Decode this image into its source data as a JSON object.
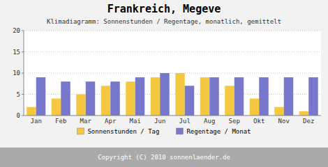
{
  "chart_data": {
    "type": "bar",
    "title": "Frankreich, Megeve",
    "subtitle": "Klimadiagramm: Sonnenstunden / Regentage, monatlich, gemittelt",
    "categories": [
      "Jan",
      "Feb",
      "Mar",
      "Apr",
      "Mai",
      "Jun",
      "Jul",
      "Aug",
      "Sep",
      "Okt",
      "Nov",
      "Dez"
    ],
    "series": [
      {
        "name": "Sonnenstunden / Tag",
        "color": "#F5C842",
        "values": [
          2,
          4,
          5,
          7,
          8,
          9,
          10,
          9,
          7,
          4,
          2,
          1
        ]
      },
      {
        "name": "Regentage / Monat",
        "color": "#7777CC",
        "values": [
          9,
          8,
          8,
          8,
          9,
          10,
          7,
          9,
          9,
          9,
          9,
          9
        ]
      }
    ],
    "ylim": [
      0,
      20
    ],
    "yticks": [
      0,
      5,
      10,
      15,
      20
    ],
    "grid": true,
    "legend": "bottom",
    "annotations": [
      "Copyright (C) 2010 sonnenlaender.de"
    ]
  }
}
